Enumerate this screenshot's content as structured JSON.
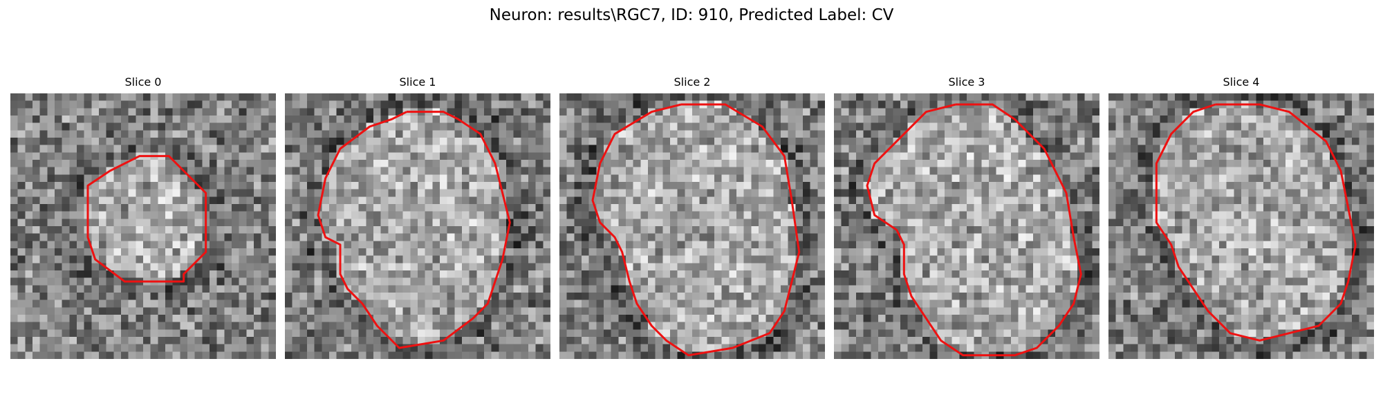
{
  "figure": {
    "title": "Neuron: results\\RGC7, ID: 910, Predicted Label: CV"
  },
  "panels": [
    {
      "title": "Slice 0",
      "seed": 11,
      "contour": [
        [
          20.5,
          8.5
        ],
        [
          21.5,
          8.5
        ],
        [
          23.5,
          10.5
        ],
        [
          26.5,
          13.5
        ],
        [
          26.5,
          21.5
        ],
        [
          23.5,
          24.5
        ],
        [
          23.5,
          25.5
        ],
        [
          15.5,
          25.5
        ],
        [
          11.5,
          22.5
        ],
        [
          10.5,
          19.5
        ],
        [
          10.5,
          12.5
        ],
        [
          13.5,
          10.5
        ],
        [
          17.5,
          8.5
        ]
      ]
    },
    {
      "title": "Slice 1",
      "seed": 23,
      "contour": [
        [
          16.5,
          2.5
        ],
        [
          21.5,
          2.5
        ],
        [
          23.5,
          3.5
        ],
        [
          26.5,
          5.5
        ],
        [
          28.5,
          9.5
        ],
        [
          29.5,
          13.5
        ],
        [
          30.5,
          17.5
        ],
        [
          29.5,
          22.5
        ],
        [
          28.5,
          25.5
        ],
        [
          27.5,
          28.5
        ],
        [
          25.5,
          30.5
        ],
        [
          21.5,
          33.5
        ],
        [
          15.5,
          34.5
        ],
        [
          12.5,
          31.5
        ],
        [
          10.5,
          28.5
        ],
        [
          8.5,
          26.5
        ],
        [
          7.5,
          24.5
        ],
        [
          7.5,
          20.5
        ],
        [
          5.5,
          19.5
        ],
        [
          4.5,
          16.5
        ],
        [
          5.5,
          11.5
        ],
        [
          7.5,
          7.5
        ],
        [
          11.5,
          4.5
        ],
        [
          14.5,
          3.5
        ]
      ]
    },
    {
      "title": "Slice 2",
      "seed": 37,
      "contour": [
        [
          16.5,
          1.5
        ],
        [
          22.5,
          1.5
        ],
        [
          27.5,
          4.5
        ],
        [
          30.5,
          8.5
        ],
        [
          31.5,
          14.5
        ],
        [
          32.5,
          21.5
        ],
        [
          31.5,
          25.5
        ],
        [
          30.5,
          29.5
        ],
        [
          28.5,
          32.5
        ],
        [
          23.5,
          34.5
        ],
        [
          17.5,
          35.5
        ],
        [
          14.5,
          33.5
        ],
        [
          12.5,
          31.5
        ],
        [
          10.5,
          28.5
        ],
        [
          9.5,
          25.5
        ],
        [
          8.5,
          21.5
        ],
        [
          7.5,
          19.5
        ],
        [
          5.5,
          17.5
        ],
        [
          4.5,
          14.5
        ],
        [
          5.5,
          9.5
        ],
        [
          7.5,
          5.5
        ],
        [
          12.5,
          2.5
        ]
      ]
    },
    {
      "title": "Slice 3",
      "seed": 41,
      "contour": [
        [
          16.5,
          1.5
        ],
        [
          21.5,
          1.5
        ],
        [
          24.5,
          3.5
        ],
        [
          28.5,
          7.5
        ],
        [
          31.5,
          13.5
        ],
        [
          32.5,
          19.5
        ],
        [
          33.5,
          24.5
        ],
        [
          32.5,
          28.5
        ],
        [
          30.5,
          31.5
        ],
        [
          27.5,
          34.5
        ],
        [
          24.5,
          35.5
        ],
        [
          17.5,
          35.5
        ],
        [
          14.5,
          33.5
        ],
        [
          12.5,
          30.5
        ],
        [
          10.5,
          27.5
        ],
        [
          9.5,
          24.5
        ],
        [
          9.5,
          20.5
        ],
        [
          8.5,
          18.5
        ],
        [
          5.5,
          16.5
        ],
        [
          4.5,
          12.5
        ],
        [
          5.5,
          9.5
        ],
        [
          8.5,
          6.5
        ],
        [
          12.5,
          2.5
        ]
      ]
    },
    {
      "title": "Slice 4",
      "seed": 53,
      "contour": [
        [
          14.5,
          1.5
        ],
        [
          20.5,
          1.5
        ],
        [
          24.5,
          2.5
        ],
        [
          29.5,
          6.5
        ],
        [
          31.5,
          10.5
        ],
        [
          32.5,
          15.5
        ],
        [
          33.5,
          20.5
        ],
        [
          32.5,
          25.5
        ],
        [
          31.5,
          28.5
        ],
        [
          28.5,
          31.5
        ],
        [
          24.5,
          32.5
        ],
        [
          20.5,
          33.5
        ],
        [
          16.5,
          32.5
        ],
        [
          13.5,
          29.5
        ],
        [
          11.5,
          26.5
        ],
        [
          9.5,
          23.5
        ],
        [
          8.5,
          20.5
        ],
        [
          6.5,
          17.5
        ],
        [
          6.5,
          9.5
        ],
        [
          8.5,
          5.5
        ],
        [
          11.5,
          2.5
        ]
      ]
    }
  ]
}
